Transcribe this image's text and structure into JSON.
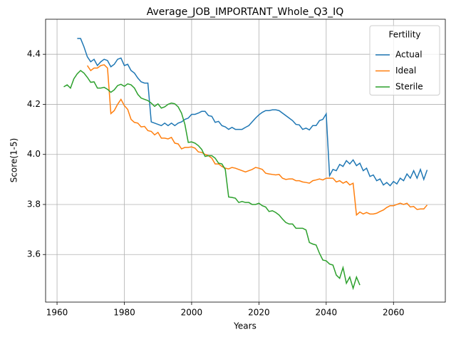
{
  "chart_data": {
    "type": "line",
    "title": "Average_JOB_IMPORTANT_Whole_Q3_IQ",
    "x_label": "Years",
    "y_label": "Score(1-5)",
    "x": [
      1962,
      1963,
      1964,
      1965,
      1966,
      1967,
      1968,
      1969,
      1970,
      1971,
      1972,
      1973,
      1974,
      1975,
      1976,
      1977,
      1978,
      1979,
      1980,
      1981,
      1982,
      1983,
      1984,
      1985,
      1986,
      1987,
      1988,
      1989,
      1990,
      1991,
      1992,
      1993,
      1994,
      1995,
      1996,
      1997,
      1998,
      1999,
      2000,
      2001,
      2002,
      2003,
      2004,
      2005,
      2006,
      2007,
      2008,
      2009,
      2010,
      2011,
      2012,
      2013,
      2014,
      2015,
      2016,
      2017,
      2018,
      2019,
      2020,
      2021,
      2022,
      2023,
      2024,
      2025,
      2026,
      2027,
      2028,
      2029,
      2030,
      2031,
      2032,
      2033,
      2034,
      2035,
      2036,
      2037,
      2038,
      2039,
      2040,
      2041,
      2042,
      2043,
      2044,
      2045,
      2046,
      2047,
      2048,
      2049,
      2050,
      2051,
      2052,
      2053,
      2054,
      2055,
      2056,
      2057,
      2058,
      2059,
      2060,
      2061,
      2062,
      2063,
      2064,
      2065,
      2066,
      2067,
      2068,
      2069,
      2070
    ],
    "series": [
      {
        "name": "Actual",
        "color": "#1f77b4",
        "values": [
          null,
          null,
          null,
          null,
          4.463,
          4.463,
          4.43,
          4.39,
          4.37,
          4.38,
          4.355,
          4.37,
          4.38,
          4.375,
          4.35,
          4.36,
          4.38,
          4.385,
          4.355,
          4.36,
          4.335,
          4.325,
          4.305,
          4.29,
          4.285,
          4.285,
          4.13,
          4.125,
          4.12,
          4.115,
          4.125,
          4.115,
          4.125,
          4.115,
          4.125,
          4.13,
          4.14,
          4.145,
          4.16,
          4.16,
          4.165,
          4.172,
          4.172,
          4.155,
          4.152,
          4.128,
          4.132,
          4.115,
          4.11,
          4.1,
          4.108,
          4.1,
          4.1,
          4.1,
          4.108,
          4.115,
          4.13,
          4.145,
          4.158,
          4.168,
          4.175,
          4.175,
          4.178,
          4.178,
          4.175,
          4.165,
          4.155,
          4.145,
          4.135,
          4.12,
          4.118,
          4.1,
          4.105,
          4.098,
          4.115,
          4.115,
          4.135,
          4.14,
          4.162,
          3.915,
          3.94,
          3.935,
          3.96,
          3.952,
          3.975,
          3.962,
          3.978,
          3.955,
          3.965,
          3.935,
          3.945,
          3.912,
          3.918,
          3.895,
          3.902,
          3.878,
          3.888,
          3.875,
          3.892,
          3.882,
          3.905,
          3.895,
          3.922,
          3.905,
          3.935,
          3.905,
          3.94,
          3.9,
          3.938
        ]
      },
      {
        "name": "Ideal",
        "color": "#ff7f0e",
        "values": [
          null,
          null,
          null,
          null,
          null,
          null,
          null,
          4.355,
          4.335,
          4.345,
          4.345,
          4.355,
          4.358,
          4.345,
          4.163,
          4.175,
          4.2,
          4.22,
          4.195,
          4.18,
          4.14,
          4.128,
          4.125,
          4.11,
          4.112,
          4.095,
          4.092,
          4.078,
          4.088,
          4.065,
          4.065,
          4.062,
          4.068,
          4.045,
          4.042,
          4.022,
          4.028,
          4.028,
          4.03,
          4.025,
          4.01,
          4.008,
          4.0,
          3.995,
          3.985,
          3.962,
          3.962,
          3.952,
          3.945,
          3.942,
          3.948,
          3.945,
          3.94,
          3.935,
          3.93,
          3.935,
          3.94,
          3.948,
          3.945,
          3.94,
          3.925,
          3.922,
          3.92,
          3.918,
          3.92,
          3.905,
          3.9,
          3.902,
          3.902,
          3.895,
          3.895,
          3.89,
          3.888,
          3.885,
          3.895,
          3.898,
          3.902,
          3.898,
          3.905,
          3.905,
          3.905,
          3.89,
          3.895,
          3.885,
          3.892,
          3.878,
          3.885,
          3.758,
          3.77,
          3.762,
          3.768,
          3.762,
          3.762,
          3.765,
          3.772,
          3.778,
          3.788,
          3.795,
          3.795,
          3.8,
          3.805,
          3.8,
          3.805,
          3.79,
          3.792,
          3.78,
          3.782,
          3.782,
          3.798
        ]
      },
      {
        "name": "Sterile",
        "color": "#2ca02c",
        "values": [
          4.27,
          4.278,
          4.265,
          4.302,
          4.322,
          4.335,
          4.325,
          4.308,
          4.288,
          4.29,
          4.265,
          4.265,
          4.268,
          4.26,
          4.248,
          4.258,
          4.275,
          4.28,
          4.272,
          4.282,
          4.278,
          4.265,
          4.24,
          4.225,
          4.22,
          4.215,
          4.205,
          4.192,
          4.202,
          4.185,
          4.19,
          4.2,
          4.205,
          4.202,
          4.19,
          4.165,
          4.12,
          4.048,
          4.05,
          4.045,
          4.035,
          4.02,
          3.992,
          3.995,
          3.995,
          3.985,
          3.965,
          3.962,
          3.94,
          3.83,
          3.828,
          3.825,
          3.808,
          3.812,
          3.808,
          3.808,
          3.8,
          3.8,
          3.805,
          3.795,
          3.79,
          3.772,
          3.775,
          3.768,
          3.758,
          3.742,
          3.728,
          3.722,
          3.722,
          3.705,
          3.705,
          3.705,
          3.698,
          3.648,
          3.642,
          3.638,
          3.605,
          3.578,
          3.575,
          3.562,
          3.558,
          3.518,
          3.505,
          3.548,
          3.485,
          3.51,
          3.465,
          3.51,
          3.478,
          null,
          null,
          null,
          null,
          null,
          null,
          null,
          null,
          null,
          null,
          null,
          null,
          null,
          null,
          null,
          null,
          null,
          null,
          null,
          null
        ]
      }
    ],
    "xlim": [
      1956.6,
      2075.4
    ],
    "ylim": [
      3.41,
      4.54
    ],
    "xticks": [
      1960,
      1980,
      2000,
      2020,
      2040,
      2060
    ],
    "yticks": [
      3.6,
      3.8,
      {
        "value": 4,
        "label": "4.0"
      },
      4.2,
      4.4
    ],
    "grid": true,
    "legend_title": "Fertility",
    "legend": "upper right"
  }
}
